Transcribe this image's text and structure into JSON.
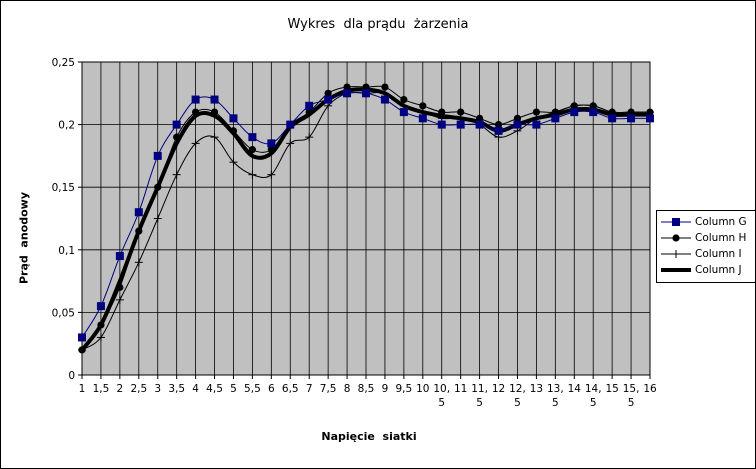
{
  "chart_data": {
    "type": "line",
    "title": "Wykres  dla prądu  żarzenia",
    "xlabel": "Napięcie  siatki",
    "ylabel": "Prąd  anodowy",
    "ylim": [
      0,
      0.25
    ],
    "yticks": [
      "0",
      "0,05",
      "0,1",
      "0,15",
      "0,2",
      "0,25"
    ],
    "categories": [
      "1",
      "1,5",
      "2",
      "2,5",
      "3",
      "3,5",
      "4",
      "4,5",
      "5",
      "5,5",
      "6",
      "6,5",
      "7",
      "7,5",
      "8",
      "8,5",
      "9",
      "9,5",
      "10",
      "10,5",
      "11",
      "11,5",
      "12",
      "12,5",
      "13",
      "13,5",
      "14",
      "14,5",
      "15",
      "15,5",
      "16"
    ],
    "grid": true,
    "legend_position": "right",
    "background": "#c0c0c0",
    "series": [
      {
        "name": "Column G",
        "color": "#000080",
        "marker": "square",
        "values": [
          0.03,
          0.055,
          0.095,
          0.13,
          0.175,
          0.2,
          0.22,
          0.22,
          0.205,
          0.19,
          0.185,
          0.2,
          0.215,
          0.22,
          0.225,
          0.225,
          0.22,
          0.21,
          0.205,
          0.2,
          0.2,
          0.2,
          0.195,
          0.2,
          0.2,
          0.205,
          0.21,
          0.21,
          0.205,
          0.205,
          0.205
        ]
      },
      {
        "name": "Column H",
        "color": "#000000",
        "marker": "circle",
        "values": [
          0.02,
          0.04,
          0.07,
          0.115,
          0.15,
          0.19,
          0.21,
          0.21,
          0.195,
          0.18,
          0.18,
          0.2,
          0.21,
          0.225,
          0.23,
          0.23,
          0.23,
          0.22,
          0.215,
          0.21,
          0.21,
          0.205,
          0.2,
          0.205,
          0.21,
          0.21,
          0.215,
          0.215,
          0.21,
          0.21,
          0.21
        ]
      },
      {
        "name": "Column I",
        "color": "#000000",
        "marker": "plus",
        "values": [
          0.02,
          0.03,
          0.06,
          0.09,
          0.125,
          0.16,
          0.185,
          0.19,
          0.17,
          0.16,
          0.16,
          0.185,
          0.19,
          0.215,
          0.225,
          0.225,
          0.225,
          0.215,
          0.21,
          0.205,
          0.205,
          0.2,
          0.19,
          0.195,
          0.205,
          0.21,
          0.215,
          0.215,
          0.21,
          0.21,
          0.21
        ]
      },
      {
        "name": "Column J",
        "color": "#000000",
        "marker": "none",
        "thick": true,
        "values": [
          0.02,
          0.04,
          0.075,
          0.115,
          0.15,
          0.185,
          0.207,
          0.207,
          0.193,
          0.175,
          0.177,
          0.198,
          0.208,
          0.22,
          0.227,
          0.228,
          0.225,
          0.215,
          0.21,
          0.207,
          0.205,
          0.202,
          0.195,
          0.2,
          0.205,
          0.208,
          0.212,
          0.212,
          0.208,
          0.208,
          0.208
        ]
      }
    ]
  }
}
